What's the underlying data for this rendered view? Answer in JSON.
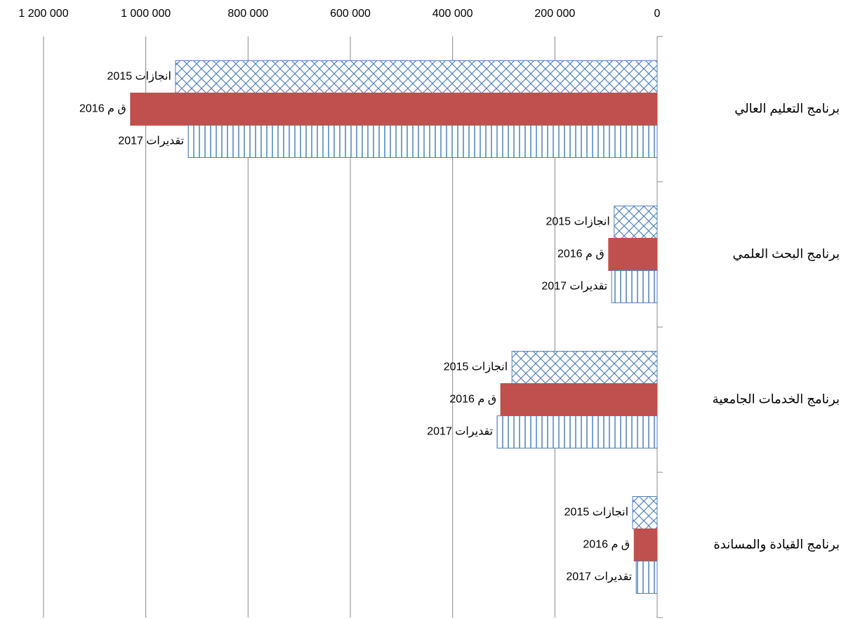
{
  "chart_data": {
    "type": "bar",
    "orientation": "horizontal",
    "x_reversed": true,
    "categories": [
      "برنامج التعليم العالي",
      "برنامج البحث العلمي",
      "برنامج الخدمات الجامعية",
      "برنامج القيادة والمساندة"
    ],
    "series": [
      {
        "name": "انجازات 2015",
        "color": "#4f81bd",
        "pattern": "crosshatch",
        "values": [
          942000,
          84000,
          284000,
          48000
        ]
      },
      {
        "name": "ق م 2016",
        "color": "#c0504d",
        "pattern": "solid",
        "values": [
          1030000,
          95000,
          306000,
          45000
        ]
      },
      {
        "name": "تقديرات 2017",
        "color": "#4f81bd",
        "pattern": "vertical",
        "values": [
          917000,
          89000,
          313000,
          41000
        ]
      }
    ],
    "xlim": [
      0,
      1200000
    ],
    "xticks": [
      0,
      {
        "value": 200000,
        "label": "200 000"
      },
      {
        "value": 400000,
        "label": "400 000"
      },
      {
        "value": 600000,
        "label": "600 000"
      },
      {
        "value": 800000,
        "label": "800 000"
      },
      {
        "value": 1000000,
        "label": "1 000 000"
      },
      {
        "value": 1200000,
        "label": "1 200 000"
      }
    ],
    "grid": true
  }
}
